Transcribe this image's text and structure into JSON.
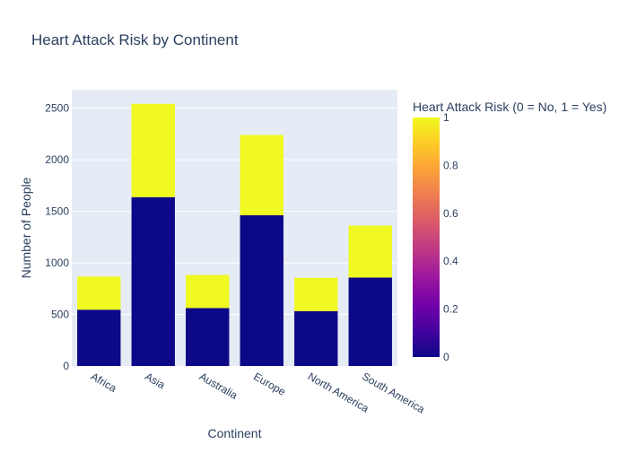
{
  "chart_data": {
    "type": "bar",
    "barmode": "stack",
    "title": "Heart Attack Risk by Continent",
    "xlabel": "Continent",
    "ylabel": "Number of People",
    "categories": [
      "Africa",
      "Asia",
      "Australia",
      "Europe",
      "North America",
      "South America"
    ],
    "series": [
      {
        "risk": 0,
        "color": "#0d0887",
        "values": [
          546,
          1638,
          562,
          1462,
          532,
          858
        ]
      },
      {
        "risk": 1,
        "color": "#f0f921",
        "values": [
          322,
          905,
          321,
          779,
          323,
          504
        ]
      }
    ],
    "ylim": [
      0,
      2680
    ],
    "yticks": [
      0,
      500,
      1000,
      1500,
      2000,
      2500
    ],
    "grid": true,
    "colorbar": {
      "title": "Heart Attack Risk (0 = No, 1 = Yes)",
      "range": [
        0,
        1
      ],
      "ticks": [
        "0",
        "0.2",
        "0.4",
        "0.6",
        "0.8",
        "1"
      ],
      "colorscale": [
        "#0d0887",
        "#46039f",
        "#7201a8",
        "#9c179e",
        "#bd3786",
        "#d8576b",
        "#ed7953",
        "#fb9f3a",
        "#fdca26",
        "#f0f921"
      ]
    },
    "colors": {
      "plot_bg": "#e5ecf6",
      "grid": "#ffffff",
      "text": "#2a3f5f"
    }
  }
}
